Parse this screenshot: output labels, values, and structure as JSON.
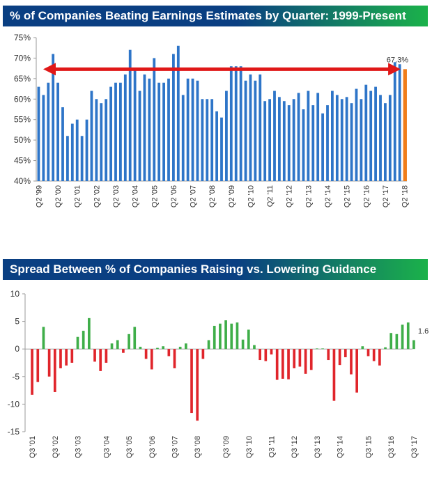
{
  "colors": {
    "banner_dark": "#0a3f82",
    "banner_green": "#1bb24a",
    "bar_blue": "#2e75c8",
    "bar_orange": "#f07d1a",
    "arrow_red": "#e01818",
    "pos_green": "#3fae49",
    "neg_red": "#e0252b",
    "axis": "#9a9a9a"
  },
  "chart_data": [
    {
      "type": "bar",
      "title": "% of Companies Beating Earnings Estimates by Quarter: 1999-Present",
      "xlabel": "",
      "ylabel": "",
      "ylim": [
        40,
        75
      ],
      "yticks": [
        40,
        45,
        50,
        55,
        60,
        65,
        70,
        75
      ],
      "ytick_format": "percent",
      "grid": false,
      "x_tick_labels": [
        "Q2 '99",
        "Q2 '00",
        "Q2 '01",
        "Q2 '02",
        "Q2 '03",
        "Q2 '04",
        "Q2 '05",
        "Q2 '06",
        "Q2 '07",
        "Q2 '08",
        "Q2 '09",
        "Q2 '10",
        "Q2 '11",
        "Q2 '12",
        "Q2 '13",
        "Q2 '14",
        "Q2 '15",
        "Q2 '16",
        "Q2 '17",
        "Q2 '18"
      ],
      "values": [
        63,
        61,
        64,
        71,
        64,
        58,
        51,
        54,
        55,
        51,
        55,
        62,
        60,
        59,
        60,
        63,
        64,
        64,
        66,
        72,
        67,
        62,
        66,
        65,
        70,
        64,
        64,
        65,
        71,
        73,
        61,
        65,
        65,
        64.5,
        60,
        60,
        60,
        57,
        55.5,
        62,
        68,
        68,
        68,
        64.5,
        66,
        64.5,
        66,
        59.5,
        60,
        62,
        60.5,
        59.5,
        58.5,
        60,
        61.5,
        57.5,
        62,
        58.5,
        61.5,
        56.5,
        58.5,
        62,
        61,
        60,
        60.5,
        59,
        62.5,
        60,
        63.5,
        62,
        63,
        61,
        59,
        61,
        69,
        68.5,
        67.3
      ],
      "highlight_last": true,
      "annotation": "67.3%",
      "reference_arrow_value": 67.3
    },
    {
      "type": "bar",
      "title": "Spread Between % of Companies Raising vs. Lowering Guidance",
      "xlabel": "",
      "ylabel": "",
      "ylim": [
        -15,
        10
      ],
      "yticks": [
        10,
        5,
        0,
        -5,
        -10,
        -15
      ],
      "grid": false,
      "x_tick_labels": [
        "Q3 '01",
        "Q3 '02",
        "Q3 '03",
        "Q3 '04",
        "Q3 '05",
        "Q3 '06",
        "Q3 '07",
        "Q3 '08",
        "Q3 '09",
        "Q3 '10",
        "Q3 '11",
        "Q3 '12",
        "Q3 '13",
        "Q3 '14",
        "Q3 '15",
        "Q3 '16",
        "Q3 '17"
      ],
      "values": [
        -8.3,
        -6,
        4,
        -5,
        -7.8,
        -3.5,
        -3,
        -2.5,
        2.2,
        3.3,
        5.6,
        -2.3,
        -4,
        -2.5,
        1,
        1.6,
        -0.7,
        2.7,
        4,
        0.4,
        -1.8,
        -3.7,
        0.2,
        0.5,
        -1.3,
        -3.5,
        0.4,
        1,
        -11.6,
        -13,
        -1.8,
        1.6,
        4.2,
        4.6,
        5.2,
        4.6,
        4.8,
        1.7,
        3.5,
        0.7,
        -2,
        -2.2,
        -1,
        -5.6,
        -5.4,
        -5.5,
        -3.5,
        -3.2,
        -4.5,
        -3.8,
        0.1,
        0.1,
        -2,
        -9.4,
        -2.9,
        -1.5,
        -4.6,
        -7.9,
        0.5,
        -1.3,
        -2.2,
        -3,
        0.3,
        2.9,
        2.7,
        4.4,
        4.8,
        1.6
      ],
      "annotation": "1.6"
    }
  ]
}
